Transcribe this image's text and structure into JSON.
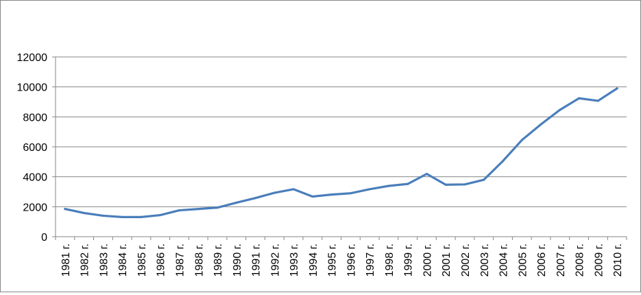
{
  "chart_data": {
    "type": "line",
    "title": "",
    "xlabel": "",
    "ylabel": "",
    "ylim": [
      0,
      12000
    ],
    "y_ticks": [
      0,
      2000,
      4000,
      6000,
      8000,
      10000,
      12000
    ],
    "grid": true,
    "legend": "none",
    "categories": [
      "1981 г.",
      "1982 г.",
      "1983 г.",
      "1984 г.",
      "1985 г.",
      "1986 г.",
      "1987 г.",
      "1988 г.",
      "1989 г.",
      "1990 г.",
      "1991 г.",
      "1992 г.",
      "1993 г.",
      "1994 г.",
      "1995 г.",
      "1996 г.",
      "1997 г.",
      "1998 г.",
      "1999 г.",
      "2000 г.",
      "2001 г.",
      "2002 г.",
      "2003 г.",
      "2004 г.",
      "2005 г.",
      "2006 г.",
      "2007 г.",
      "2008 г.",
      "2009 г.",
      "2010 г."
    ],
    "series": [
      {
        "color": "#4a7ebb",
        "values": [
          1850,
          1580,
          1400,
          1310,
          1310,
          1440,
          1760,
          1850,
          1940,
          2270,
          2580,
          2930,
          3170,
          2680,
          2810,
          2900,
          3170,
          3390,
          3520,
          4190,
          3470,
          3490,
          3800,
          5050,
          6450,
          7500,
          8470,
          9240,
          9070,
          9900
        ]
      }
    ]
  }
}
